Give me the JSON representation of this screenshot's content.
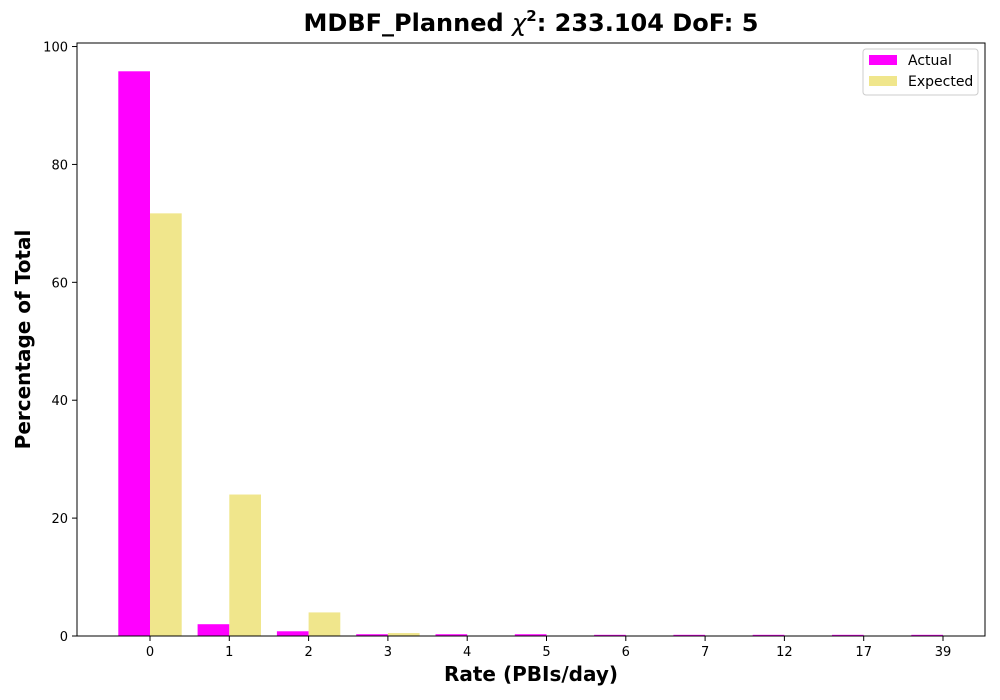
{
  "chart_data": {
    "type": "bar",
    "title": "MDBF_Planned",
    "title_chi_symbol": "χ",
    "title_chi_exp": "2",
    "title_stats": ": 233.104 DoF: 5",
    "xlabel": "Rate (PBIs/day)",
    "ylabel": "Percentage of Total",
    "categories": [
      "0",
      "1",
      "2",
      "3",
      "4",
      "5",
      "6",
      "7",
      "12",
      "17",
      "39"
    ],
    "series": [
      {
        "name": "Actual",
        "color": "#ff00ff",
        "values": [
          95.8,
          2.0,
          0.8,
          0.3,
          0.3,
          0.3,
          0.2,
          0.2,
          0.2,
          0.2,
          0.2
        ]
      },
      {
        "name": "Expected",
        "color": "#f0e68c",
        "values": [
          71.7,
          24.0,
          4.0,
          0.5,
          0.05,
          0.0,
          0.0,
          0.0,
          0.0,
          0.0,
          0.0
        ]
      }
    ],
    "ylim": [
      0,
      100.6
    ],
    "yticks": [
      0,
      20,
      40,
      60,
      80,
      100
    ],
    "grid": false,
    "legend_position": "top-right"
  }
}
